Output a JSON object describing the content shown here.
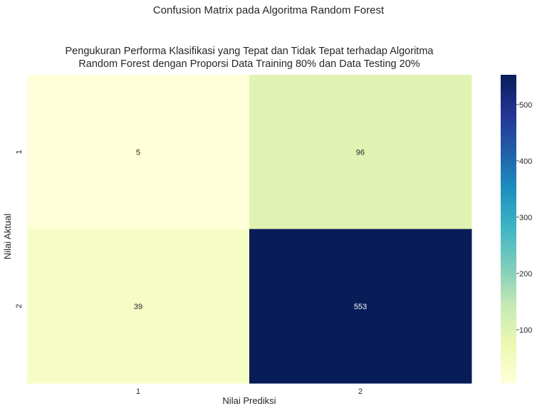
{
  "chart_data": {
    "type": "heatmap",
    "suptitle": "Confusion Matrix pada Algoritma Random Forest",
    "title_lines": [
      "Pengukuran Performa Klasifikasi yang Tepat dan Tidak Tepat terhadap Algoritma",
      "Random Forest dengan Proporsi Data Training 80% dan Data Testing 20%"
    ],
    "xlabel": "Nilai Prediksi",
    "ylabel": "Nilai Aktual",
    "x_categories": [
      "1",
      "2"
    ],
    "y_categories": [
      "1",
      "2"
    ],
    "values": [
      [
        5,
        96
      ],
      [
        39,
        553
      ]
    ],
    "colormap": "YlGnBu",
    "colorbar": {
      "min": 5,
      "max": 553,
      "ticks": [
        100,
        200,
        300,
        400,
        500
      ]
    }
  }
}
